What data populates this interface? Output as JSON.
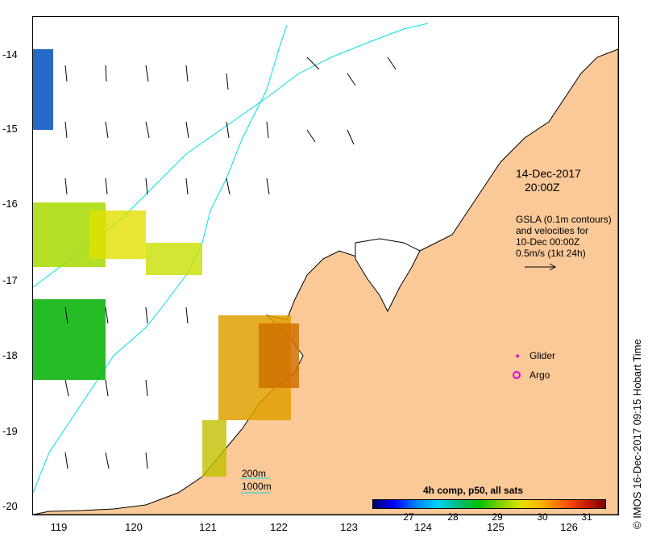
{
  "map": {
    "y_ticks": [
      "-14",
      "-15",
      "-16",
      "-17",
      "-18",
      "-19",
      "-20"
    ],
    "x_ticks": [
      "119",
      "120",
      "121",
      "122",
      "123",
      "124",
      "125",
      "126"
    ],
    "timestamp_date": "14-Dec-2017",
    "timestamp_time": "20:00Z",
    "legend_text": [
      "GSLA (0.1m contours)",
      "and velocities for",
      "10-Dec 00:00Z",
      "0.5m/s (1kt 24h)"
    ],
    "glider_label": "Glider",
    "argo_label": "Argo",
    "depth_200": "200m",
    "depth_1000": "1000m",
    "colorbar_title": "4h comp, p50, all sats",
    "colorbar_ticks": [
      "27",
      "28",
      "29",
      "30",
      "31"
    ],
    "credit": "© IMOS 16-Dec-2017 09:15 Hobart Time",
    "colors": {
      "land": "#fbc898",
      "contour": "#00e0e0",
      "glider": "#e000e0",
      "argo": "#e000e0"
    }
  }
}
